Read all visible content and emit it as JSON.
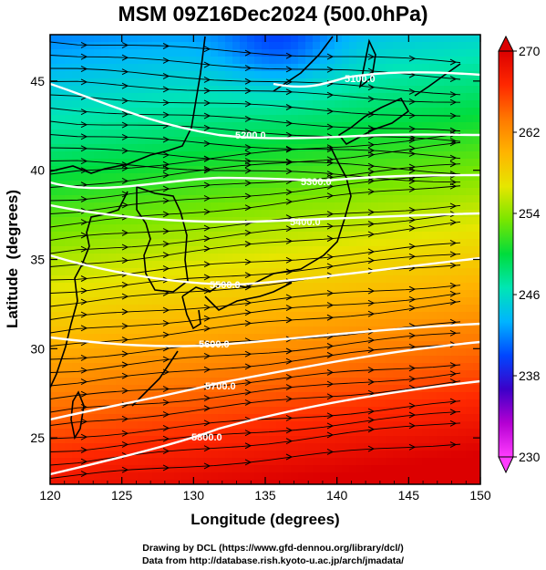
{
  "title": "MSM 09Z16Dec2024 (500.0hPa)",
  "x_axis": {
    "label": "Longitude (degrees)",
    "range": [
      120,
      150
    ],
    "ticks": [
      "120",
      "125",
      "130",
      "135",
      "140",
      "145",
      "150"
    ]
  },
  "y_axis": {
    "label": "Latitude  (degrees)",
    "range": [
      22.4,
      47.6
    ],
    "ticks": [
      "25",
      "30",
      "35",
      "40",
      "45"
    ]
  },
  "colorbar": {
    "range": [
      230,
      270
    ],
    "ticks": [
      "230",
      "238",
      "246",
      "254",
      "262",
      "270"
    ],
    "colors": [
      "#ff3cff",
      "#b400d2",
      "#3c00c8",
      "#0046ff",
      "#00b4ff",
      "#00e6b4",
      "#00dc3c",
      "#78e600",
      "#e6e600",
      "#ffb400",
      "#ff7800",
      "#ff2800",
      "#dc0000"
    ]
  },
  "contour_labels": [
    "5100.0",
    "5200.0",
    "5300.0",
    "5400.0",
    "5500.0",
    "5600.0",
    "5700.0",
    "5800.0"
  ],
  "credits": {
    "line1": "Drawing by DCL (https://www.gfd-dennou.org/library/dcl/)",
    "line2": "Data from http://database.rish.kyoto-u.ac.jp/arch/jmadata/"
  }
}
